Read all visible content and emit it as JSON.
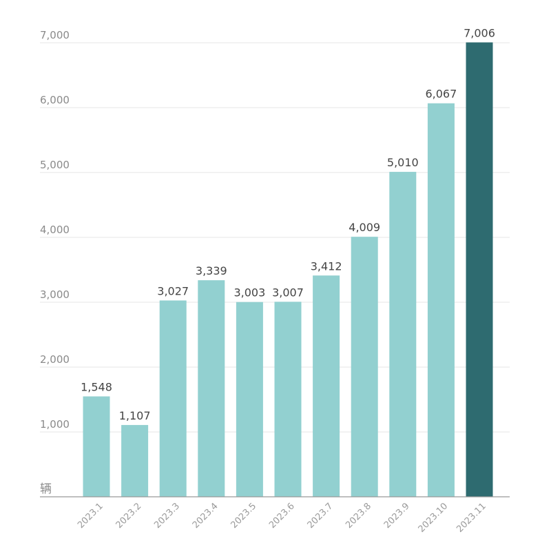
{
  "chart_data": {
    "type": "bar",
    "title": "",
    "xlabel": "",
    "ylabel": "",
    "unit_label": "辆",
    "categories": [
      "2023.1",
      "2023.2",
      "2023.3",
      "2023.4",
      "2023.5",
      "2023.6",
      "2023.7",
      "2023.8",
      "2023.9",
      "2023.10",
      "2023.11"
    ],
    "values": [
      1548,
      1107,
      3027,
      3339,
      3003,
      3007,
      3412,
      4009,
      5010,
      6067,
      7006
    ],
    "value_labels": [
      "1,548",
      "1,107",
      "3,027",
      "3,339",
      "3,003",
      "3,007",
      "3,412",
      "4,009",
      "5,010",
      "6,067",
      "7,006"
    ],
    "yticks": [
      1000,
      2000,
      3000,
      4000,
      5000,
      6000,
      7000
    ],
    "ytick_labels": [
      "1,000",
      "2,000",
      "3,000",
      "4,000",
      "5,000",
      "6,000",
      "7,000"
    ],
    "ylim": [
      0,
      7000
    ],
    "grid": true,
    "colors": {
      "bar": "#92d0d0",
      "highlight": "#2e6b70",
      "grid": "#e6e6e6",
      "axis": "#999999"
    },
    "highlight_index": 10
  }
}
